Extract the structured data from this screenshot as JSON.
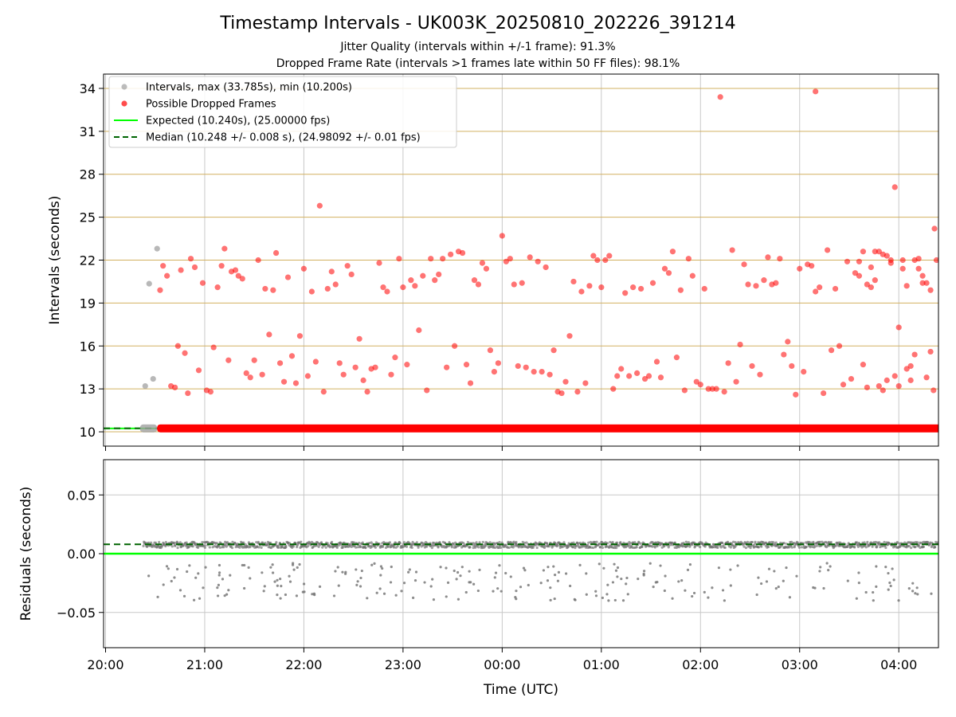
{
  "title": "Timestamp Intervals - UK003K_20250810_202226_391214",
  "subtitle_1": "Jitter Quality (intervals within +/-1 frame): 91.3%",
  "subtitle_2": "Dropped Frame Rate (intervals >1 frames late within 50 FF files): 98.1%",
  "colors": {
    "normal_points": "#a0a0a0",
    "dropped_points": "#ff0000",
    "expected_line": "#00ff00",
    "median_line": "#006400",
    "h_gridlines": "#d2b060",
    "v_gridlines": "#c8c8c8",
    "residual_points": "#707070"
  },
  "chart_data": [
    {
      "type": "scatter",
      "ylabel": "Intervals (seconds)",
      "xlabel": "",
      "x_unit": "hours since 20:00 UTC",
      "xlim": [
        -0.02,
        8.4
      ],
      "ylim": [
        9.0,
        35.0
      ],
      "y_ticks": [
        10,
        13,
        16,
        19,
        22,
        25,
        28,
        31,
        34
      ],
      "grid": "on",
      "legend_placement": "top-left",
      "legend": [
        {
          "label": "Intervals, max (33.785s), min (10.200s)",
          "kind": "marker",
          "color": "#a0a0a0"
        },
        {
          "label": "Possible Dropped Frames",
          "kind": "marker",
          "color": "#ff0000"
        },
        {
          "label": "Expected (10.240s), (25.00000 fps)",
          "kind": "solid-line",
          "color": "#00ff00"
        },
        {
          "label": "Median (10.248 +/- 0.008 s), (24.98092 +/- 0.01 fps)",
          "kind": "dashed-line",
          "color": "#006400"
        }
      ],
      "expected": 10.24,
      "median": 10.248,
      "baseline_band": {
        "x_start": 0.38,
        "x_end": 8.4,
        "y": 10.24,
        "gray_until": 0.52
      },
      "series": [
        {
          "name": "Intervals, max (33.785s), min (10.200s)",
          "points": [
            [
              0.4,
              13.2
            ],
            [
              0.44,
              20.35
            ],
            [
              0.48,
              13.7
            ],
            [
              0.52,
              22.8
            ]
          ]
        },
        {
          "name": "Possible Dropped Frames",
          "points": [
            [
              0.55,
              19.9
            ],
            [
              0.58,
              21.6
            ],
            [
              0.62,
              20.9
            ],
            [
              0.66,
              13.2
            ],
            [
              0.7,
              13.1
            ],
            [
              0.73,
              16.0
            ],
            [
              0.76,
              21.3
            ],
            [
              0.8,
              15.5
            ],
            [
              0.83,
              12.7
            ],
            [
              0.86,
              22.1
            ],
            [
              0.9,
              21.5
            ],
            [
              0.94,
              14.3
            ],
            [
              0.98,
              20.4
            ],
            [
              1.02,
              12.9
            ],
            [
              1.06,
              12.8
            ],
            [
              1.09,
              15.9
            ],
            [
              1.13,
              20.1
            ],
            [
              1.17,
              21.6
            ],
            [
              1.2,
              22.8
            ],
            [
              1.24,
              15.0
            ],
            [
              1.27,
              21.2
            ],
            [
              1.31,
              21.3
            ],
            [
              1.34,
              20.9
            ],
            [
              1.38,
              20.7
            ],
            [
              1.42,
              14.1
            ],
            [
              1.46,
              13.8
            ],
            [
              1.5,
              15.0
            ],
            [
              1.54,
              22.0
            ],
            [
              1.58,
              14.0
            ],
            [
              1.61,
              20.0
            ],
            [
              1.65,
              16.8
            ],
            [
              1.69,
              19.9
            ],
            [
              1.72,
              22.5
            ],
            [
              1.76,
              14.8
            ],
            [
              1.8,
              13.5
            ],
            [
              1.84,
              20.8
            ],
            [
              1.88,
              15.3
            ],
            [
              1.92,
              13.4
            ],
            [
              1.96,
              16.7
            ],
            [
              2.0,
              21.4
            ],
            [
              2.04,
              13.9
            ],
            [
              2.08,
              19.8
            ],
            [
              2.12,
              14.9
            ],
            [
              2.16,
              25.8
            ],
            [
              2.2,
              12.8
            ],
            [
              2.24,
              20.0
            ],
            [
              2.28,
              21.2
            ],
            [
              2.32,
              20.3
            ],
            [
              2.36,
              14.8
            ],
            [
              2.4,
              14.0
            ],
            [
              2.44,
              21.6
            ],
            [
              2.48,
              21.0
            ],
            [
              2.52,
              14.5
            ],
            [
              2.56,
              16.5
            ],
            [
              2.6,
              13.6
            ],
            [
              2.64,
              12.8
            ],
            [
              2.68,
              14.4
            ],
            [
              2.72,
              14.5
            ],
            [
              2.76,
              21.8
            ],
            [
              2.8,
              20.1
            ],
            [
              2.84,
              19.8
            ],
            [
              2.88,
              14.0
            ],
            [
              2.92,
              15.2
            ],
            [
              2.96,
              22.1
            ],
            [
              3.0,
              20.1
            ],
            [
              3.04,
              14.7
            ],
            [
              3.08,
              20.6
            ],
            [
              3.12,
              20.2
            ],
            [
              3.16,
              17.1
            ],
            [
              3.2,
              20.9
            ],
            [
              3.24,
              12.9
            ],
            [
              3.28,
              22.1
            ],
            [
              3.32,
              20.6
            ],
            [
              3.36,
              21.0
            ],
            [
              3.4,
              22.1
            ],
            [
              3.44,
              14.5
            ],
            [
              3.48,
              22.4
            ],
            [
              3.52,
              16.0
            ],
            [
              3.56,
              22.6
            ],
            [
              3.6,
              22.5
            ],
            [
              3.64,
              14.7
            ],
            [
              3.68,
              13.4
            ],
            [
              3.72,
              20.6
            ],
            [
              3.76,
              20.3
            ],
            [
              3.8,
              21.8
            ],
            [
              3.84,
              21.4
            ],
            [
              3.88,
              15.7
            ],
            [
              3.92,
              14.2
            ],
            [
              3.96,
              14.8
            ],
            [
              4.0,
              23.7
            ],
            [
              4.04,
              21.9
            ],
            [
              4.08,
              22.1
            ],
            [
              4.12,
              20.3
            ],
            [
              4.16,
              14.6
            ],
            [
              4.2,
              20.4
            ],
            [
              4.24,
              14.5
            ],
            [
              4.28,
              22.2
            ],
            [
              4.32,
              14.2
            ],
            [
              4.36,
              21.9
            ],
            [
              4.4,
              14.2
            ],
            [
              4.44,
              21.5
            ],
            [
              4.48,
              14.0
            ],
            [
              4.52,
              15.7
            ],
            [
              4.56,
              12.8
            ],
            [
              4.6,
              12.7
            ],
            [
              4.64,
              13.5
            ],
            [
              4.68,
              16.7
            ],
            [
              4.72,
              20.5
            ],
            [
              4.76,
              12.8
            ],
            [
              4.8,
              19.8
            ],
            [
              4.84,
              13.4
            ],
            [
              4.88,
              20.2
            ],
            [
              4.92,
              22.3
            ],
            [
              4.96,
              22.0
            ],
            [
              5.0,
              20.1
            ],
            [
              5.04,
              22.0
            ],
            [
              5.08,
              22.3
            ],
            [
              5.12,
              13.0
            ],
            [
              5.16,
              13.9
            ],
            [
              5.2,
              14.4
            ],
            [
              5.24,
              19.7
            ],
            [
              5.28,
              13.9
            ],
            [
              5.32,
              20.1
            ],
            [
              5.36,
              14.1
            ],
            [
              5.4,
              20.0
            ],
            [
              5.44,
              13.7
            ],
            [
              5.48,
              13.9
            ],
            [
              5.52,
              20.4
            ],
            [
              5.56,
              14.9
            ],
            [
              5.6,
              13.8
            ],
            [
              5.64,
              21.4
            ],
            [
              5.68,
              21.1
            ],
            [
              5.72,
              22.6
            ],
            [
              5.76,
              15.2
            ],
            [
              5.8,
              19.9
            ],
            [
              5.84,
              12.9
            ],
            [
              5.88,
              22.1
            ],
            [
              5.92,
              20.9
            ],
            [
              5.96,
              13.5
            ],
            [
              6.0,
              13.3
            ],
            [
              6.04,
              20.0
            ],
            [
              6.08,
              13.0
            ],
            [
              6.12,
              13.0
            ],
            [
              6.16,
              13.0
            ],
            [
              6.2,
              33.4
            ],
            [
              6.24,
              12.8
            ],
            [
              6.28,
              14.8
            ],
            [
              6.32,
              22.7
            ],
            [
              6.36,
              13.5
            ],
            [
              6.4,
              16.1
            ],
            [
              6.44,
              21.7
            ],
            [
              6.48,
              20.3
            ],
            [
              6.52,
              14.6
            ],
            [
              6.56,
              20.2
            ],
            [
              6.6,
              14.0
            ],
            [
              6.64,
              20.6
            ],
            [
              6.68,
              22.2
            ],
            [
              6.72,
              20.3
            ],
            [
              6.76,
              20.4
            ],
            [
              6.8,
              22.1
            ],
            [
              6.84,
              15.4
            ],
            [
              6.88,
              16.3
            ],
            [
              6.92,
              14.6
            ],
            [
              6.96,
              12.6
            ],
            [
              7.0,
              21.4
            ],
            [
              7.04,
              14.2
            ],
            [
              7.08,
              21.7
            ],
            [
              7.12,
              21.6
            ],
            [
              7.16,
              19.8
            ],
            [
              7.2,
              20.1
            ],
            [
              7.24,
              12.7
            ],
            [
              7.28,
              22.7
            ],
            [
              7.32,
              15.7
            ],
            [
              7.36,
              20.0
            ],
            [
              7.4,
              16.0
            ],
            [
              7.44,
              13.3
            ],
            [
              7.48,
              21.9
            ],
            [
              7.52,
              13.7
            ],
            [
              7.56,
              21.1
            ],
            [
              7.6,
              21.9
            ],
            [
              7.64,
              22.6
            ],
            [
              7.68,
              13.1
            ],
            [
              7.72,
              21.5
            ],
            [
              7.76,
              22.6
            ],
            [
              7.8,
              13.2
            ],
            [
              7.84,
              22.4
            ],
            [
              7.88,
              22.3
            ],
            [
              7.92,
              21.8
            ],
            [
              7.96,
              27.1
            ],
            [
              8.0,
              17.3
            ],
            [
              8.04,
              22.0
            ],
            [
              8.08,
              14.4
            ],
            [
              8.12,
              14.6
            ],
            [
              8.16,
              15.4
            ],
            [
              8.2,
              21.4
            ],
            [
              8.24,
              20.9
            ],
            [
              8.28,
              20.4
            ],
            [
              8.32,
              19.9
            ],
            [
              8.36,
              24.2
            ]
          ]
        }
      ]
    },
    {
      "type": "scatter",
      "ylabel": "Residuals (seconds)",
      "xlabel": "Time (UTC)",
      "x_unit": "hours since 20:00 UTC",
      "xlim": [
        -0.02,
        8.4
      ],
      "ylim": [
        -0.08,
        0.08
      ],
      "y_ticks": [
        -0.05,
        0.0,
        0.05
      ],
      "y_tick_labels": [
        "−0.05",
        "0.00",
        "0.05"
      ],
      "x_ticks": [
        0,
        1,
        2,
        3,
        4,
        5,
        6,
        7,
        8
      ],
      "x_tick_labels": [
        "20:00",
        "21:00",
        "22:00",
        "23:00",
        "00:00",
        "01:00",
        "02:00",
        "03:00",
        "04:00"
      ],
      "grid": "on",
      "expected_residual": 0.0,
      "median_residual": 0.008,
      "main_band": {
        "x_start": 0.38,
        "x_end": 8.4,
        "center": 0.0075,
        "spread": 0.0025
      },
      "scattered_negative_residuals": {
        "x_start": 0.42,
        "x_end": 8.35,
        "y_min": -0.04,
        "y_max": -0.008,
        "count": 240
      }
    }
  ],
  "extra_top_dropped_points": [
    [
      7.16,
      33.785
    ],
    [
      7.6,
      20.9
    ],
    [
      7.64,
      14.7
    ],
    [
      7.68,
      20.3
    ],
    [
      7.72,
      20.1
    ],
    [
      7.76,
      20.6
    ],
    [
      7.8,
      22.6
    ],
    [
      7.84,
      12.9
    ],
    [
      7.88,
      13.6
    ],
    [
      7.92,
      22.0
    ],
    [
      7.96,
      13.9
    ],
    [
      8.0,
      13.2
    ],
    [
      8.04,
      21.4
    ],
    [
      8.08,
      20.2
    ],
    [
      8.12,
      13.6
    ],
    [
      8.16,
      22.0
    ],
    [
      8.2,
      22.1
    ],
    [
      8.24,
      20.4
    ],
    [
      8.28,
      13.8
    ],
    [
      8.32,
      15.6
    ],
    [
      8.35,
      12.9
    ],
    [
      8.38,
      22.0
    ]
  ]
}
